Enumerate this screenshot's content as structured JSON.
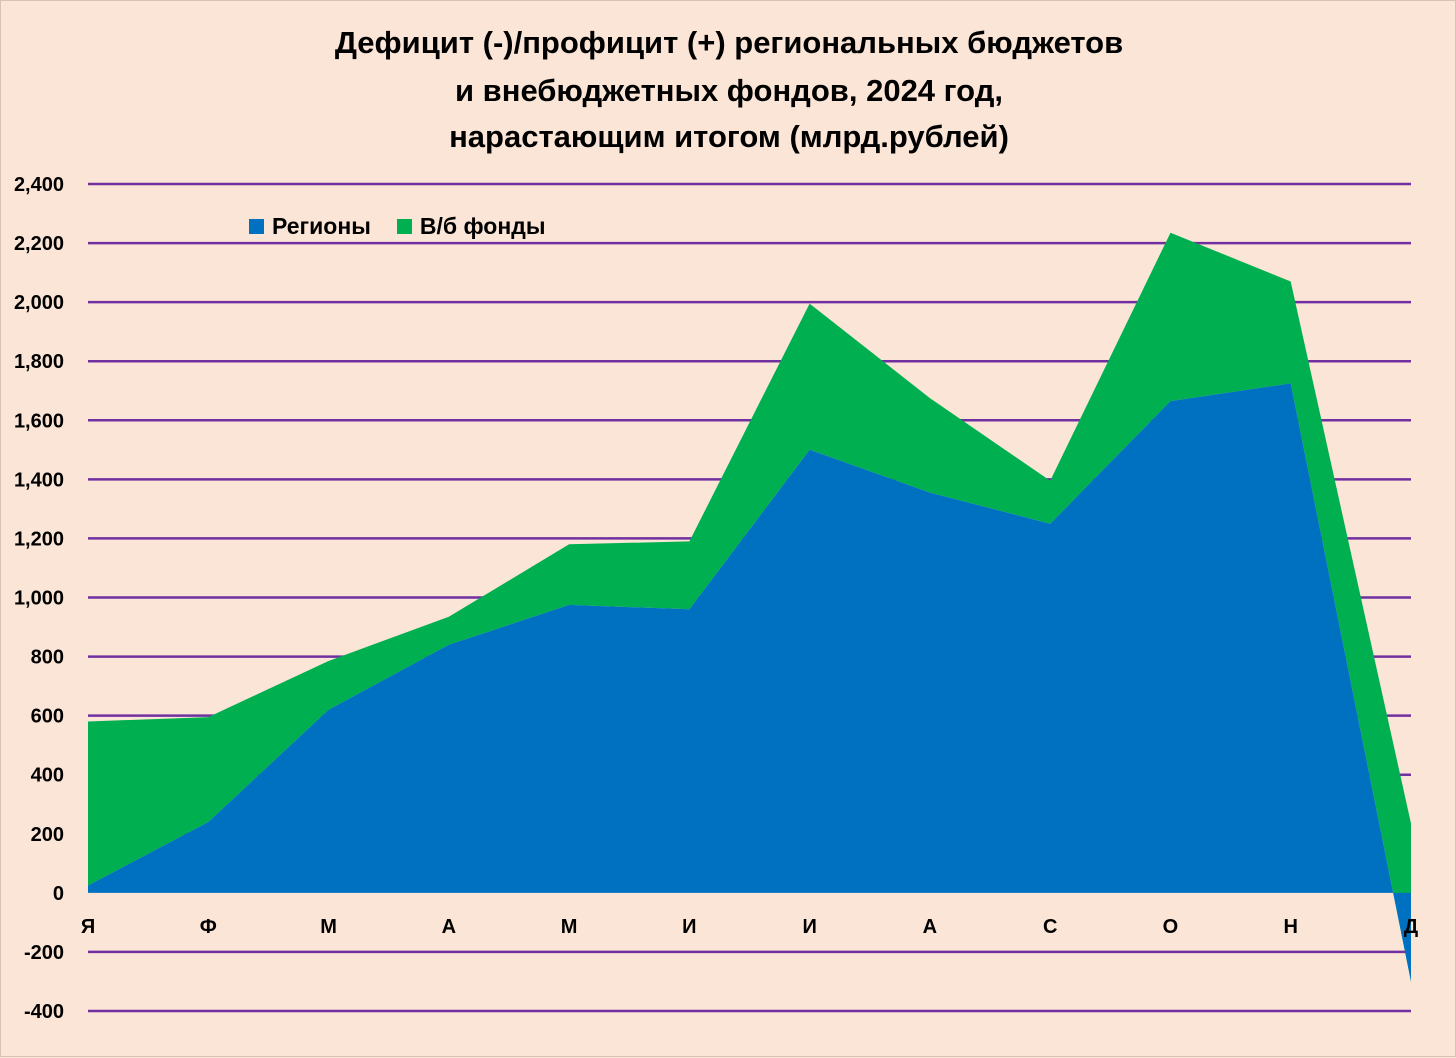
{
  "title_lines": [
    "Дефицит (-)/профицит (+) региональных бюджетов",
    "и внебюджетных фондов,  2024 год,",
    "нарастающим итогом (млрд.рублей)"
  ],
  "colors": {
    "background": "#fbe5d6",
    "grid": "#7030a0",
    "regions": "#0070c0",
    "funds": "#00b050"
  },
  "chart_data": {
    "type": "area",
    "stacked": true,
    "title": "Дефицит (-)/профицит (+) региональных бюджетов и внебюджетных фондов,  2024 год, нарастающим итогом (млрд.рублей)",
    "categories": [
      "Я",
      "Ф",
      "М",
      "А",
      "М",
      "И",
      "И",
      "А",
      "С",
      "О",
      "Н",
      "Д"
    ],
    "series": [
      {
        "name": "Регионы",
        "values": [
          25,
          240,
          620,
          840,
          975,
          960,
          1500,
          1355,
          1250,
          1665,
          1725,
          -300
        ]
      },
      {
        "name": "В/б фонды",
        "values": [
          555,
          355,
          165,
          95,
          205,
          230,
          495,
          320,
          145,
          570,
          345,
          535
        ]
      }
    ],
    "totals": [
      580,
      595,
      785,
      935,
      1180,
      1190,
      1995,
      1675,
      1395,
      2235,
      2070,
      235
    ],
    "ylim": [
      -400,
      2400
    ],
    "y_ticks": [
      -400,
      -200,
      0,
      200,
      400,
      600,
      800,
      1000,
      1200,
      1400,
      1600,
      1800,
      2000,
      2200,
      2400
    ],
    "y_tick_labels": [
      "-400",
      "-200",
      "0",
      "200",
      "400",
      "600",
      "800",
      "1,000",
      "1,200",
      "1,400",
      "1,600",
      "1,800",
      "2,000",
      "2,200",
      "2,400"
    ],
    "grid": true,
    "legend_position": "top-left",
    "xlabel": "",
    "ylabel": ""
  }
}
